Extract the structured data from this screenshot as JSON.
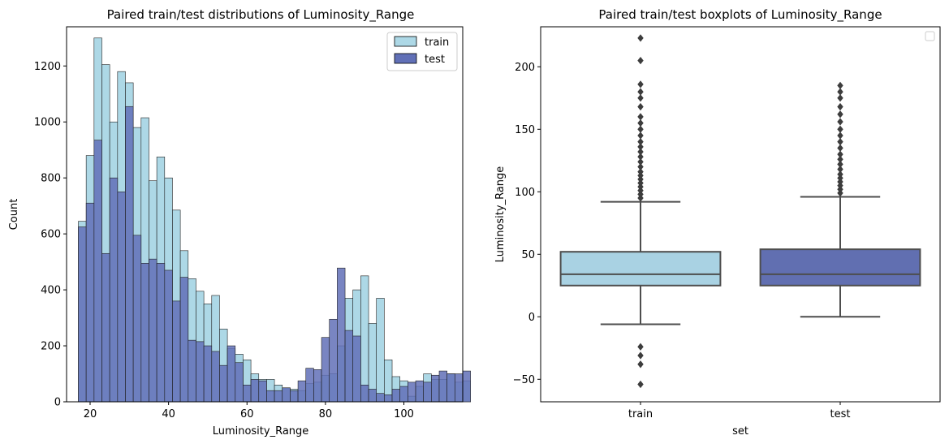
{
  "chart_data": [
    {
      "type": "histogram",
      "title": "Paired train/test distributions of Luminosity_Range",
      "xlabel": "Luminosity_Range",
      "ylabel": "Count",
      "xlim": [
        14,
        115
      ],
      "ylim": [
        0,
        1340
      ],
      "xticks": [
        20,
        40,
        60,
        80,
        100
      ],
      "yticks": [
        0,
        200,
        400,
        600,
        800,
        1000,
        1200
      ],
      "legend": {
        "position": "top-right",
        "entries": [
          "train",
          "test"
        ]
      },
      "bin_start": 17,
      "bin_width": 2,
      "series": [
        {
          "name": "train",
          "color": "#add8e6",
          "values": [
            645,
            880,
            1300,
            1205,
            1000,
            1180,
            1140,
            980,
            1015,
            790,
            875,
            800,
            685,
            540,
            440,
            395,
            350,
            380,
            260,
            190,
            170,
            150,
            100,
            80,
            80,
            60,
            50,
            45,
            40,
            65,
            70,
            95,
            100,
            200,
            370,
            400,
            450,
            280,
            370,
            150,
            90,
            75,
            20,
            55,
            100,
            80,
            80,
            100,
            70,
            75
          ]
        },
        {
          "name": "test",
          "color": "#6170b7",
          "values": [
            625,
            710,
            935,
            530,
            800,
            750,
            1055,
            595,
            495,
            510,
            495,
            470,
            360,
            445,
            220,
            215,
            200,
            180,
            130,
            200,
            140,
            60,
            80,
            75,
            40,
            40,
            50,
            40,
            75,
            120,
            115,
            230,
            295,
            478,
            255,
            235,
            60,
            45,
            30,
            25,
            45,
            55,
            70,
            75,
            70,
            95,
            110,
            100,
            100,
            110
          ]
        }
      ]
    },
    {
      "type": "boxplot",
      "title": "Paired train/test boxplots of Luminosity_Range",
      "xlabel": "set",
      "ylabel": "Luminosity_Range",
      "ylim": [
        -68,
        232
      ],
      "yticks": [
        -50,
        0,
        50,
        100,
        150,
        200
      ],
      "categories": [
        "train",
        "test"
      ],
      "legend": {
        "position": "top-right",
        "entries": []
      },
      "series": [
        {
          "name": "train",
          "color": "#a9d2e3",
          "whisker_low": -6,
          "q1": 25,
          "median": 34,
          "q3": 52,
          "whisker_high": 92,
          "outliers": [
            95,
            98,
            101,
            104,
            107,
            110,
            113,
            116,
            120,
            124,
            128,
            132,
            136,
            140,
            145,
            150,
            155,
            160,
            168,
            175,
            180,
            186,
            205,
            223,
            -24,
            -31,
            -38,
            -54
          ]
        },
        {
          "name": "test",
          "color": "#616fb1",
          "whisker_low": 0,
          "q1": 25,
          "median": 34,
          "q3": 54,
          "whisker_high": 96,
          "outliers": [
            99,
            102,
            105,
            108,
            111,
            114,
            118,
            122,
            126,
            130,
            135,
            140,
            145,
            150,
            156,
            162,
            168,
            175,
            180,
            185
          ]
        }
      ]
    }
  ]
}
